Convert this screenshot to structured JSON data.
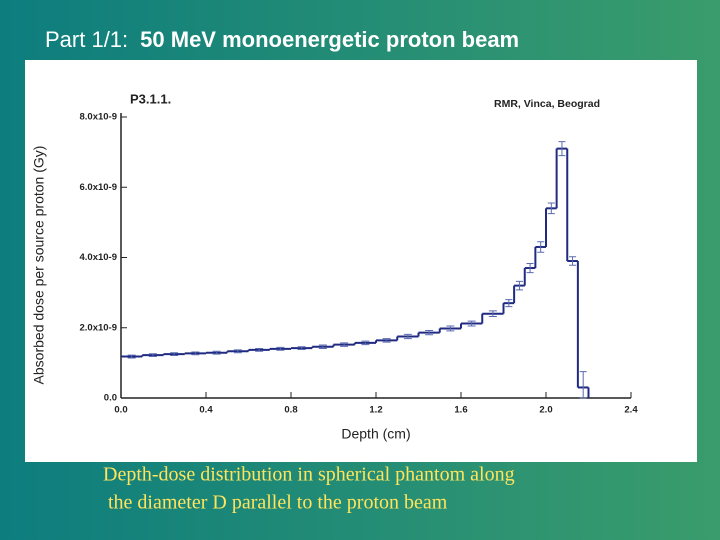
{
  "slide_title": {
    "prefix": "Part 1/1:",
    "main": "50 MeV monoenergetic proton beam"
  },
  "chart_data": {
    "type": "histogram",
    "title": "P3.1.1.",
    "annotation": "RMR, Vinca, Beograd",
    "x_label": "Depth (cm)",
    "y_label": "Absorbed dose per source proton (Gy)",
    "color": "#1f2a80",
    "bins": [
      0,
      0.1,
      0.2,
      0.3,
      0.4,
      0.5,
      0.6,
      0.7,
      0.8,
      0.9,
      1.0,
      1.1,
      1.2,
      1.3,
      1.4,
      1.5,
      1.6,
      1.7,
      1.8,
      1.85,
      1.9,
      1.95,
      2.0,
      2.05,
      2.1,
      2.15,
      2.2
    ],
    "values": [
      1.18e-09,
      1.22e-09,
      1.25e-09,
      1.27e-09,
      1.29e-09,
      1.33e-09,
      1.37e-09,
      1.4e-09,
      1.42e-09,
      1.46e-09,
      1.52e-09,
      1.57e-09,
      1.64e-09,
      1.75e-09,
      1.86e-09,
      1.98e-09,
      2.12e-09,
      2.4e-09,
      2.7e-09,
      3.2e-09,
      3.7e-09,
      4.3e-09,
      5.4e-09,
      7.1e-09,
      3.9e-09,
      3e-10
    ],
    "errors": [
      4e-11,
      4e-11,
      4e-11,
      4e-11,
      4e-11,
      4e-11,
      4e-11,
      4e-11,
      4e-11,
      5e-11,
      5e-11,
      5e-11,
      5e-11,
      6e-11,
      6e-11,
      7e-11,
      7e-11,
      8e-11,
      1e-10,
      1.2e-10,
      1.3e-10,
      1.5e-10,
      1.5e-10,
      2e-10,
      1.2e-10,
      4.5e-10
    ],
    "xlim": [
      0,
      2.4
    ],
    "ylim": [
      0,
      8e-09
    ],
    "xticks": [
      {
        "value": 0,
        "label": "0.0"
      },
      0.4,
      0.8,
      1.2,
      1.6,
      {
        "value": 2,
        "label": "2.0"
      },
      2.4
    ],
    "yticks": [
      {
        "value": 0,
        "label": "0.0"
      },
      {
        "value": 2e-09,
        "label": "2.0x10-9"
      },
      {
        "value": 4e-09,
        "label": "4.0x10-9"
      },
      {
        "value": 6e-09,
        "label": "6.0x10-9"
      },
      {
        "value": 8e-09,
        "label": "8.0x10-9"
      }
    ]
  },
  "caption": [
    "Depth-dose distribution in spherical phantom along",
    "the diameter D parallel to the proton beam"
  ]
}
